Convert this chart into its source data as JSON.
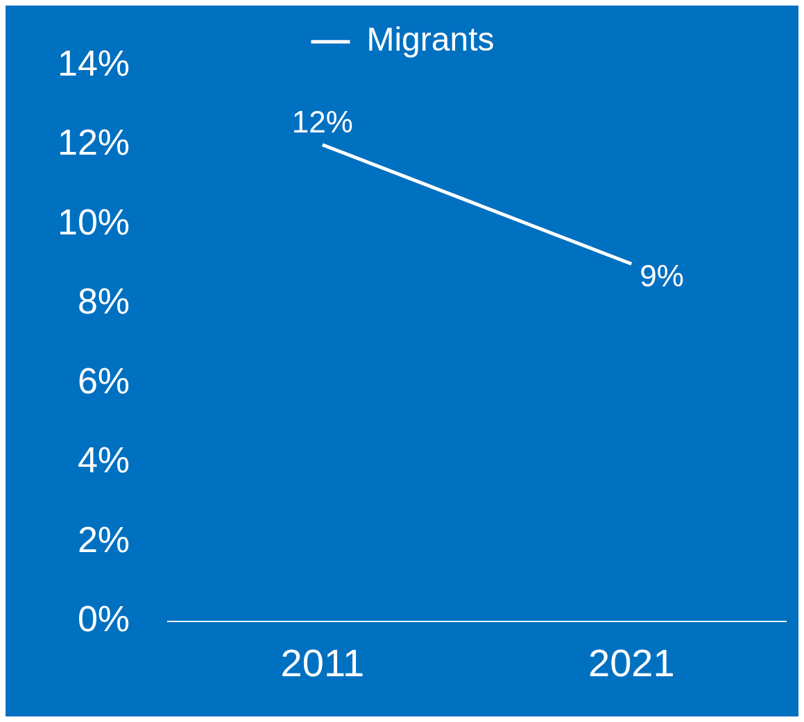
{
  "chart_data": {
    "type": "line",
    "categories": [
      "2011",
      "2021"
    ],
    "series": [
      {
        "name": "Migrants",
        "color": "#ffffff",
        "values": [
          12,
          9
        ],
        "value_labels": [
          "12%",
          "9%"
        ]
      }
    ],
    "ylim": [
      0,
      14
    ],
    "yticks": [
      {
        "value": 0,
        "label": "0%"
      },
      {
        "value": 2,
        "label": "2%"
      },
      {
        "value": 4,
        "label": "4%"
      },
      {
        "value": 6,
        "label": "6%"
      },
      {
        "value": 8,
        "label": "8%"
      },
      {
        "value": 10,
        "label": "10%"
      },
      {
        "value": 12,
        "label": "12%"
      },
      {
        "value": 14,
        "label": "14%"
      }
    ],
    "grid": false,
    "legend": "top",
    "marker": "none",
    "line_style": "solid"
  }
}
